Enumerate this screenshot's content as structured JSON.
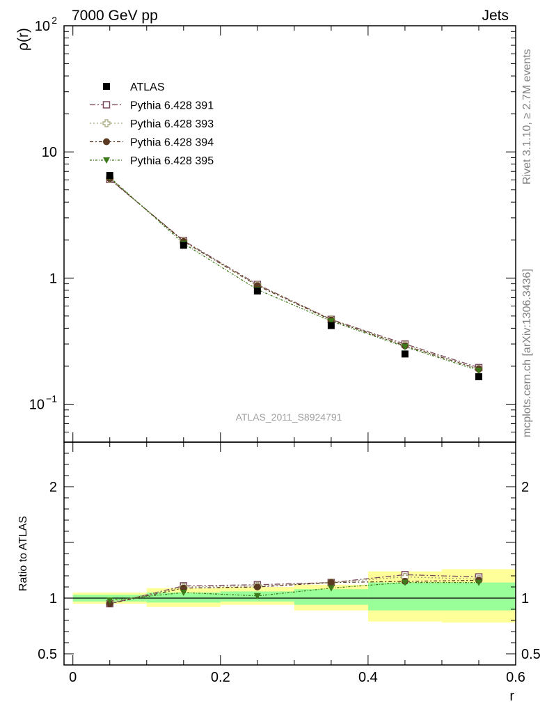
{
  "header": {
    "left": "7000 GeV pp",
    "right": "Jets"
  },
  "side_texts": {
    "rivet": "Rivet 3.1.10, ≥ 2.7M events",
    "mcplots": "mcplots.cern.ch [arXiv:1306.3436]"
  },
  "watermark": "ATLAS_2011_S8924791",
  "colors": {
    "atlas": "#000000",
    "s391": "#7b4a60",
    "s393": "#a0a070",
    "s394": "#5a3a22",
    "s395": "#3c7a1a",
    "band_yellow": "#ffff99",
    "band_green": "#99ff99"
  },
  "chart_data": [
    {
      "type": "scatter",
      "panel": "main",
      "ylabel": "ρ(r)",
      "yscale": "log",
      "ylim": [
        0.05,
        100
      ],
      "xlim": [
        -0.012,
        0.6
      ],
      "y_tick_labels": [
        "10",
        "1"
      ],
      "y_tick_labels_power": [
        {
          "base": "10",
          "exp": "2"
        },
        {
          "base": "10",
          "exp": "−1"
        }
      ],
      "legend_position": "top-left",
      "x": [
        0.05,
        0.15,
        0.25,
        0.35,
        0.45,
        0.55
      ],
      "series": [
        {
          "name": "ATLAS",
          "marker": "filled-square",
          "values": [
            6.5,
            1.82,
            0.79,
            0.42,
            0.25,
            0.165
          ]
        },
        {
          "name": "Pythia 6.428 391",
          "marker": "open-square",
          "values": [
            6.05,
            1.98,
            0.89,
            0.47,
            0.3,
            0.195
          ]
        },
        {
          "name": "Pythia 6.428 393",
          "marker": "open-cross",
          "values": [
            6.1,
            1.96,
            0.88,
            0.47,
            0.295,
            0.19
          ]
        },
        {
          "name": "Pythia 6.428 394",
          "marker": "filled-circle",
          "values": [
            6.15,
            1.95,
            0.87,
            0.465,
            0.29,
            0.19
          ]
        },
        {
          "name": "Pythia 6.428 395",
          "marker": "filled-triangle-down",
          "values": [
            6.3,
            1.88,
            0.81,
            0.455,
            0.285,
            0.185
          ]
        }
      ]
    },
    {
      "type": "line",
      "panel": "ratio",
      "ylabel": "Ratio to ATLAS",
      "xlabel": "r",
      "ylim": [
        0.4,
        2.4
      ],
      "xlim": [
        -0.012,
        0.6
      ],
      "x_tick_labels": [
        "0",
        "0.2",
        "0.4",
        "0.6"
      ],
      "y_tick_labels": [
        "0.5",
        "1",
        "2"
      ],
      "bands": [
        {
          "x0": 0.0,
          "x1": 0.1,
          "yellow": [
            0.95,
            1.05
          ],
          "green": [
            0.97,
            1.03
          ]
        },
        {
          "x0": 0.1,
          "x1": 0.2,
          "yellow": [
            0.92,
            1.09
          ],
          "green": [
            0.96,
            1.05
          ]
        },
        {
          "x0": 0.2,
          "x1": 0.3,
          "yellow": [
            0.94,
            1.1
          ],
          "green": [
            0.97,
            1.06
          ]
        },
        {
          "x0": 0.3,
          "x1": 0.4,
          "yellow": [
            0.89,
            1.12
          ],
          "green": [
            0.94,
            1.08
          ]
        },
        {
          "x0": 0.4,
          "x1": 0.5,
          "yellow": [
            0.79,
            1.24
          ],
          "green": [
            0.89,
            1.14
          ]
        },
        {
          "x0": 0.5,
          "x1": 0.6,
          "yellow": [
            0.78,
            1.26
          ],
          "green": [
            0.89,
            1.14
          ]
        }
      ],
      "x": [
        0.05,
        0.15,
        0.25,
        0.35,
        0.45,
        0.55
      ],
      "series": [
        {
          "name": "Pythia 6.428 391",
          "marker": "open-square",
          "values": [
            0.95,
            1.11,
            1.12,
            1.14,
            1.21,
            1.19
          ]
        },
        {
          "name": "Pythia 6.428 393",
          "marker": "open-cross",
          "values": [
            0.96,
            1.1,
            1.11,
            1.14,
            1.19,
            1.17
          ]
        },
        {
          "name": "Pythia 6.428 394",
          "marker": "filled-circle",
          "values": [
            0.95,
            1.09,
            1.1,
            1.14,
            1.15,
            1.16
          ]
        },
        {
          "name": "Pythia 6.428 395",
          "marker": "filled-triangle-down",
          "values": [
            0.98,
            1.05,
            1.02,
            1.09,
            1.14,
            1.14
          ]
        }
      ]
    }
  ]
}
